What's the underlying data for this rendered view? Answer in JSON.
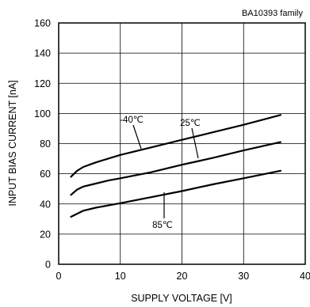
{
  "chart_data": {
    "type": "line",
    "family_label": "BA10393  family",
    "xlabel": "SUPPLY VOLTAGE  [V]",
    "ylabel": "INPUT BIAS CURRENT [nA]",
    "xlim": [
      0,
      40
    ],
    "ylim": [
      0,
      160
    ],
    "xticks": [
      0,
      10,
      20,
      30,
      40
    ],
    "yticks": [
      0,
      20,
      40,
      60,
      80,
      100,
      120,
      140,
      160
    ],
    "grid": true,
    "series": [
      {
        "name": "-40℃",
        "points": [
          [
            2,
            58
          ],
          [
            3,
            62
          ],
          [
            4,
            64.5
          ],
          [
            6,
            67.5
          ],
          [
            8,
            70
          ],
          [
            10,
            72.5
          ],
          [
            15,
            77.5
          ],
          [
            20,
            82.5
          ],
          [
            25,
            87.5
          ],
          [
            30,
            92.5
          ],
          [
            36,
            99
          ]
        ]
      },
      {
        "name": "25℃",
        "points": [
          [
            2,
            46
          ],
          [
            3,
            49.5
          ],
          [
            4,
            51.5
          ],
          [
            6,
            53.5
          ],
          [
            8,
            55.5
          ],
          [
            10,
            57
          ],
          [
            15,
            61
          ],
          [
            20,
            66
          ],
          [
            25,
            70.5
          ],
          [
            30,
            75.5
          ],
          [
            36,
            81
          ]
        ]
      },
      {
        "name": "85℃",
        "points": [
          [
            2,
            31.5
          ],
          [
            3,
            33.5
          ],
          [
            4,
            35.5
          ],
          [
            6,
            37.5
          ],
          [
            8,
            39
          ],
          [
            10,
            40.5
          ],
          [
            15,
            44.5
          ],
          [
            20,
            48.5
          ],
          [
            25,
            53
          ],
          [
            30,
            57
          ],
          [
            36,
            62
          ]
        ]
      }
    ],
    "annotations": [
      {
        "text": "-40℃",
        "series": "-40℃"
      },
      {
        "text": "25℃",
        "series": "25℃"
      },
      {
        "text": "85℃",
        "series": "85℃"
      }
    ]
  }
}
